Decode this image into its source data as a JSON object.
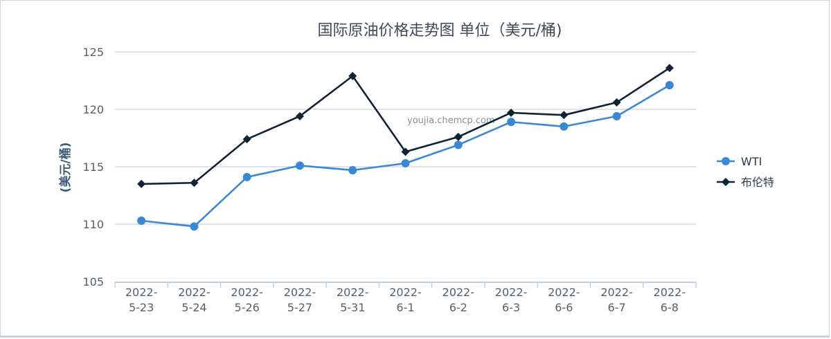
{
  "chart_data": {
    "type": "line",
    "title": "国际原油价格走势图 单位（美元/桶)",
    "ylabel": "(美元/桶)",
    "xlabel": "",
    "ylim": [
      105,
      125
    ],
    "yticks": [
      105,
      110,
      115,
      120,
      125
    ],
    "categories": [
      [
        "2022-",
        "5-23"
      ],
      [
        "2022-",
        "5-24"
      ],
      [
        "2022-",
        "5-26"
      ],
      [
        "2022-",
        "5-27"
      ],
      [
        "2022-",
        "5-31"
      ],
      [
        "2022-",
        "6-1"
      ],
      [
        "2022-",
        "6-2"
      ],
      [
        "2022-",
        "6-3"
      ],
      [
        "2022-",
        "6-6"
      ],
      [
        "2022-",
        "6-7"
      ],
      [
        "2022-",
        "6-8"
      ]
    ],
    "series": [
      {
        "name": "WTI",
        "color": "#3a87d4",
        "marker": "circle",
        "values": [
          110.3,
          109.8,
          114.1,
          115.1,
          114.7,
          115.3,
          116.9,
          118.9,
          118.5,
          119.4,
          122.1
        ]
      },
      {
        "name": "布伦特",
        "color": "#0f2236",
        "marker": "diamond",
        "values": [
          113.5,
          113.6,
          117.4,
          119.4,
          122.9,
          116.3,
          117.6,
          119.7,
          119.5,
          120.6,
          123.6
        ]
      }
    ],
    "grid": true,
    "legend": "right",
    "watermark": "youjia.chemcp.com"
  }
}
